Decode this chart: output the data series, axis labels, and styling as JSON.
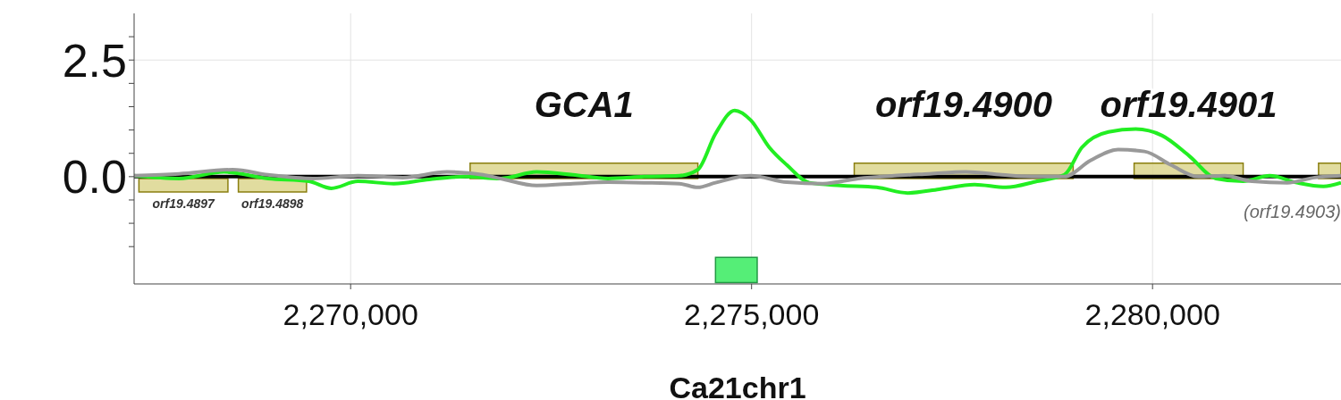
{
  "chart_data": {
    "type": "line",
    "xlabel": "Ca21chr1",
    "xlim": [
      2267300,
      2282350
    ],
    "xticks": [
      {
        "value": 2270000,
        "label": "2,270,000"
      },
      {
        "value": 2275000,
        "label": "2,275,000"
      },
      {
        "value": 2280000,
        "label": "2,280,000"
      }
    ],
    "ylim": [
      -2.3,
      3.5
    ],
    "yticks": [
      {
        "value": -1.5,
        "label": null
      },
      {
        "value": -1.0,
        "label": null
      },
      {
        "value": -0.5,
        "label": null
      },
      {
        "value": 0,
        "label": "0.0"
      },
      {
        "value": 0.5,
        "label": null
      },
      {
        "value": 1.0,
        "label": null
      },
      {
        "value": 1.5,
        "label": null
      },
      {
        "value": 2.0,
        "label": null
      },
      {
        "value": 2.5,
        "label": "2.5"
      },
      {
        "value": 3.0,
        "label": null
      }
    ],
    "grid": true,
    "line_style": "solid",
    "marker": "none",
    "ref_lines": [
      {
        "axis": "y",
        "value": 0,
        "color": "#000000"
      }
    ],
    "bands": [
      {
        "axis": "x",
        "from": 2267360,
        "to": 2268470,
        "label": "orf19.4897",
        "color": "#dcd68e"
      },
      {
        "axis": "x",
        "from": 2268600,
        "to": 2269450,
        "label": "orf19.4898",
        "color": "#dcd68e"
      },
      {
        "axis": "x",
        "from": 2271490,
        "to": 2274330,
        "label": "GCA1",
        "color": "#dcd68e"
      },
      {
        "axis": "x",
        "from": 2276280,
        "to": 2279010,
        "label": "orf19.4900",
        "color": "#dcd68e"
      },
      {
        "axis": "x",
        "from": 2279770,
        "to": 2281130,
        "label": "orf19.4901",
        "color": "#dcd68e"
      },
      {
        "axis": "x",
        "from": 2282070,
        "to": 2282350,
        "label": "(orf19.4903)",
        "color": "#dcd68e"
      },
      {
        "axis": "x",
        "from": 2274550,
        "to": 2275070,
        "color": "#55ee77"
      }
    ],
    "series": [
      {
        "color": "#22ee22",
        "x": [
          2267300,
          2267860,
          2268420,
          2268970,
          2269480,
          2269760,
          2270090,
          2270540,
          2270980,
          2271430,
          2271870,
          2272320,
          2272770,
          2273210,
          2273660,
          2274100,
          2274330,
          2274550,
          2274790,
          2274990,
          2275220,
          2275440,
          2275720,
          2276110,
          2276560,
          2276950,
          2277340,
          2277780,
          2278170,
          2278560,
          2278900,
          2279120,
          2279450,
          2279790,
          2280120,
          2280460,
          2280790,
          2281130,
          2281460,
          2281800,
          2282130,
          2282350
        ],
        "values": [
          0.02,
          -0.04,
          0.1,
          -0.04,
          -0.1,
          -0.25,
          -0.1,
          -0.15,
          -0.06,
          0,
          -0.04,
          0.1,
          0.04,
          -0.04,
          0,
          0.02,
          0.15,
          0.92,
          1.42,
          1.21,
          0.63,
          0.25,
          -0.13,
          -0.19,
          -0.23,
          -0.35,
          -0.27,
          -0.17,
          -0.23,
          -0.1,
          0.04,
          0.63,
          0.96,
          1.02,
          0.88,
          0.44,
          -0.04,
          -0.1,
          0.02,
          -0.13,
          -0.21,
          -0.13
        ]
      },
      {
        "color": "#999999",
        "x": [
          2267300,
          2267860,
          2268530,
          2268970,
          2269530,
          2270090,
          2270650,
          2271200,
          2271650,
          2271870,
          2272320,
          2272770,
          2273210,
          2273660,
          2274100,
          2274330,
          2274550,
          2274990,
          2275440,
          2275890,
          2276330,
          2276780,
          2277220,
          2277670,
          2278120,
          2278560,
          2278900,
          2279230,
          2279570,
          2279900,
          2280230,
          2280570,
          2280900,
          2281240,
          2281680,
          2282020,
          2282350
        ],
        "values": [
          0.02,
          0.06,
          0.15,
          0.04,
          -0.04,
          0.02,
          -0.02,
          0.1,
          0.04,
          -0.04,
          -0.19,
          -0.15,
          -0.12,
          -0.13,
          -0.15,
          -0.23,
          -0.13,
          0.02,
          -0.12,
          -0.15,
          -0.04,
          0.02,
          0.06,
          0.1,
          0.04,
          0,
          0,
          0.35,
          0.58,
          0.54,
          0.25,
          0,
          0.02,
          -0.1,
          -0.13,
          -0.02,
          0.02
        ]
      }
    ]
  }
}
